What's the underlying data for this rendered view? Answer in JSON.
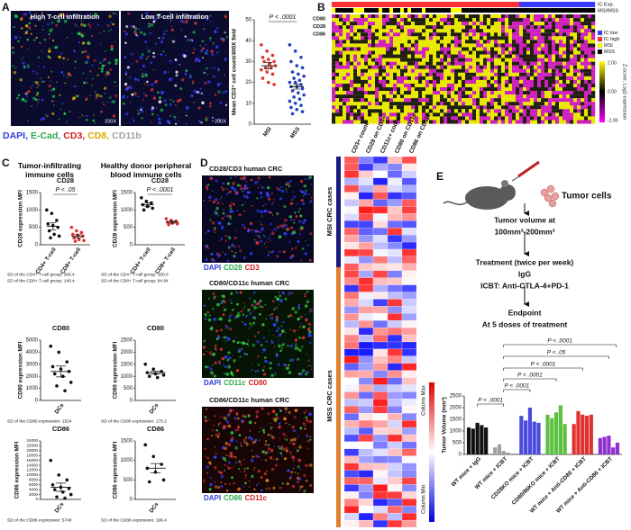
{
  "panel_labels": [
    "A",
    "B",
    "C",
    "D",
    "E"
  ],
  "panel_a": {
    "images": [
      {
        "caption": "High T-cell infiltration",
        "magnification": "200X"
      },
      {
        "caption": "Low T-cell infiltration",
        "magnification": "200X"
      }
    ],
    "stain_legend": [
      {
        "text": "DAPI,",
        "color": "#2b3fd8"
      },
      {
        "text": "E-Cad,",
        "color": "#2aa84a"
      },
      {
        "text": "CD3,",
        "color": "#d42020"
      },
      {
        "text": "CD8,",
        "color": "#e0a800"
      },
      {
        "text": "CD11b",
        "color": "#a0a0a0"
      }
    ]
  },
  "panel_b": {
    "bar_labels": [
      "IC Exp.",
      "MSI/MSS"
    ],
    "gene_labels": [
      "CD80",
      "CD28",
      "CD86"
    ],
    "legend": [
      {
        "text": "IC low",
        "color": "#3a3aff"
      },
      {
        "text": "IC high",
        "color": "#ff3030"
      },
      {
        "text": "MSI",
        "color": "#ffff00"
      },
      {
        "text": "MSS",
        "color": "#000000"
      }
    ],
    "colorbar": {
      "title": "Z-score, Log2 expression",
      "ticks": [
        "2.00",
        "0.00",
        "-2.00"
      ]
    }
  },
  "panel_c": {
    "column_titles": [
      "Tumor-infiltrating immune cells",
      "Healthy donor peripheral blood immune cells"
    ],
    "sd_notes": [
      "SD of the CD4+ T-cell group: 309.4",
      "SD of the CD8+ T-cell group: 140.4",
      "SD of the CD4+ T-cell group: 160.8",
      "SD of the CD8+ T-cell group: 84.84",
      "SD of the CD80 expression: 1524",
      "SD of the CD80 expression: 175.2",
      "SD of the CD86 expression: 5748",
      "SD of the CD86 expression: 196.4"
    ]
  },
  "panel_d": {
    "images": [
      {
        "title": "CD28/CD3 human CRC",
        "stains": [
          {
            "text": "DAPI",
            "color": "#2b3fd8"
          },
          {
            "text": "CD28",
            "color": "#2aa84a"
          },
          {
            "text": "CD3",
            "color": "#d42020"
          }
        ]
      },
      {
        "title": "CD80/CD11c human CRC",
        "stains": [
          {
            "text": "DAPI",
            "color": "#2b3fd8"
          },
          {
            "text": "CD11c",
            "color": "#2aa84a"
          },
          {
            "text": "CD80",
            "color": "#d42020"
          }
        ]
      },
      {
        "title": "CD86/CD11c human CRC",
        "stains": [
          {
            "text": "DAPI",
            "color": "#2b3fd8"
          },
          {
            "text": "CD86",
            "color": "#2aa84a"
          },
          {
            "text": "CD11c",
            "color": "#d42020"
          }
        ]
      }
    ],
    "heatmap_columns": [
      "CD3+ count",
      "CD28 on CD3+",
      "CD11c+ count",
      "CD80 on CD11c+",
      "CD86 on CD11c+"
    ],
    "row_groups": [
      "MSI CRC cases",
      "MSS CRC cases"
    ],
    "colorbar": [
      "Column Max",
      "Column Min"
    ]
  },
  "panel_e": {
    "tumor_label": "Tumor cells",
    "steps": [
      "Tumor volume at",
      "100mm³-200mm³",
      "Treatment (twice per week)",
      "IgG",
      "ICBT: Anti-CTLA-4+PD-1",
      "Endpoint",
      "At 5 doses of treatment"
    ]
  },
  "chart_data": [
    {
      "type": "strip",
      "ylabel": "Mean CD3⁺ cell count/400X field",
      "categories": [
        "MSI",
        "MSS"
      ],
      "colors": [
        "#e03030",
        "#2040c0"
      ],
      "values": [
        [
          38,
          35,
          33,
          32,
          31,
          30,
          30,
          29,
          28,
          27,
          27,
          26,
          25,
          24,
          22,
          20,
          19
        ],
        [
          38,
          35,
          32,
          30,
          28,
          27,
          25,
          24,
          23,
          22,
          21,
          20,
          20,
          19,
          18,
          18,
          17,
          16,
          15,
          14,
          13,
          12,
          11,
          10,
          9,
          8,
          7,
          6,
          5
        ]
      ],
      "means": [
        28,
        18
      ],
      "errors": [
        1.5,
        1.2
      ],
      "annotation": "P < .0001",
      "ylim": [
        0,
        50
      ],
      "yticks": [
        0,
        10,
        20,
        30,
        40,
        50
      ]
    },
    {
      "type": "strip",
      "title": "CD28",
      "ylabel": "CD28 expression MFI",
      "categories": [
        "CD4+ T-cell",
        "CD8+ T-cell"
      ],
      "colors": [
        "#111111",
        "#e03030"
      ],
      "values": [
        [
          1000,
          900,
          700,
          600,
          550,
          500,
          400,
          300,
          250,
          200
        ],
        [
          500,
          400,
          350,
          300,
          280,
          250,
          200,
          150,
          120,
          100
        ]
      ],
      "means": [
        530,
        240
      ],
      "errors": [
        100,
        45
      ],
      "annotation": "P < .05",
      "ylim": [
        0,
        1500
      ],
      "yticks": [
        0,
        500,
        1000,
        1500
      ]
    },
    {
      "type": "strip",
      "title": "CD28",
      "ylabel": "CD28 expression MFI",
      "categories": [
        "CD4+ T-cell",
        "CD8+ T-cell"
      ],
      "colors": [
        "#111111",
        "#e03030"
      ],
      "values": [
        [
          1350,
          1250,
          1200,
          1150,
          1100,
          1050,
          1000
        ],
        [
          750,
          700,
          680,
          650,
          620,
          600,
          580
        ]
      ],
      "means": [
        1150,
        650
      ],
      "errors": [
        55,
        30
      ],
      "annotation": "P < .0001",
      "ylim": [
        0,
        1500
      ],
      "yticks": [
        0,
        500,
        1000,
        1500
      ]
    },
    {
      "type": "strip",
      "title": "CD80",
      "ylabel": "CD80 expression MFI",
      "categories": [
        "DCs"
      ],
      "colors": [
        "#111111"
      ],
      "values": [
        [
          4500,
          4000,
          3200,
          2800,
          2600,
          2400,
          2200,
          2000,
          1500,
          1200,
          800
        ]
      ],
      "means": [
        2400
      ],
      "errors": [
        450
      ],
      "ylim": [
        0,
        5000
      ],
      "yticks": [
        0,
        1000,
        2000,
        3000,
        4000,
        5000
      ]
    },
    {
      "type": "strip",
      "title": "CD80",
      "ylabel": "CD80 expression MFI",
      "categories": [
        "DCs"
      ],
      "colors": [
        "#111111"
      ],
      "values": [
        [
          1500,
          1300,
          1200,
          1150,
          1100,
          1050,
          1000,
          950
        ]
      ],
      "means": [
        1150
      ],
      "errors": [
        60
      ],
      "ylim": [
        0,
        2500
      ],
      "yticks": [
        0,
        500,
        1000,
        1500,
        2000,
        2500
      ]
    },
    {
      "type": "strip",
      "title": "CD86",
      "ylabel": "CD86 expression MFI",
      "categories": [
        "DCs"
      ],
      "colors": [
        "#111111"
      ],
      "values": [
        [
          16000,
          10000,
          8000,
          6000,
          5000,
          4500,
          4000,
          3000,
          2000,
          1000,
          500
        ]
      ],
      "means": [
        5000
      ],
      "errors": [
        1700
      ],
      "ylim": [
        0,
        24000
      ],
      "yticks": [
        0,
        2000,
        4000,
        6000,
        8000,
        10000,
        12000,
        14000,
        16000,
        18000,
        20000,
        22000,
        24000
      ]
    },
    {
      "type": "strip",
      "title": "CD86",
      "ylabel": "CD86 expression MFI",
      "categories": [
        "DCs"
      ],
      "colors": [
        "#111111"
      ],
      "values": [
        [
          1400,
          1100,
          900,
          800,
          700,
          500,
          450
        ]
      ],
      "means": [
        800
      ],
      "errors": [
        120
      ],
      "ylim": [
        0,
        1500
      ],
      "yticks": [
        0,
        500,
        1000,
        1500
      ]
    },
    {
      "type": "bar",
      "ylabel": "Tumor Volume (mm³)",
      "categories": [
        "WT mice + IgG",
        "WT mice + ICBT",
        "CD28KO mice + ICBT",
        "CD80/86KO mice + ICBT",
        "WT mice + Anti-CD80 + ICBT",
        "WT mice + Anti-CD86 + ICBT"
      ],
      "colors": [
        "#111111",
        "#a0a0a0",
        "#4a4ae0",
        "#5cc040",
        "#e03030",
        "#9030d0"
      ],
      "values": [
        [
          1150,
          1100,
          1350,
          1250,
          1150
        ],
        [
          300,
          430,
          150,
          80,
          40
        ],
        [
          1650,
          1450,
          2000,
          1400,
          1350
        ],
        [
          1700,
          1550,
          1800,
          2100,
          1300
        ],
        [
          1300,
          1850,
          1700,
          1650,
          1700
        ],
        [
          700,
          750,
          800,
          300,
          500
        ]
      ],
      "annotations": [
        "P < .0001",
        "P < .05",
        "P < .0001",
        "P < .0001",
        "P < .0001",
        "P < .0001"
      ],
      "ylim": [
        0,
        2500
      ],
      "yticks": [
        0,
        500,
        1000,
        1500,
        2000,
        2500
      ]
    }
  ]
}
